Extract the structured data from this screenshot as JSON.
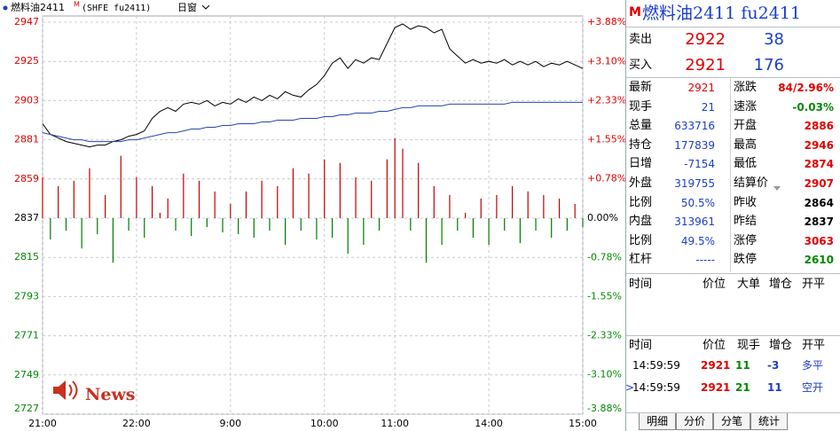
{
  "header": {
    "name": "燃料油2411",
    "flag": "M",
    "code": "(SHFE fu2411)",
    "window": "日窗"
  },
  "watermark": "News",
  "chart_data": {
    "type": "line",
    "x": [
      0,
      5,
      10,
      15,
      20,
      25,
      30,
      35,
      40,
      45,
      50,
      55,
      60,
      65,
      70,
      75,
      80,
      85,
      90,
      95,
      100,
      105,
      110,
      115,
      120,
      125,
      130,
      135,
      140,
      145,
      150,
      155,
      160,
      165,
      170,
      175,
      180,
      185,
      190,
      195,
      200,
      205,
      210,
      215,
      220,
      225,
      230,
      235,
      240,
      245,
      250,
      255,
      260,
      265,
      270,
      275,
      280,
      285,
      290,
      295,
      300,
      305,
      310,
      315,
      320,
      325,
      330,
      335,
      340,
      345
    ],
    "series": [
      {
        "color": "#000000",
        "values": [
          2890,
          2884,
          2882,
          2880,
          2879,
          2878,
          2877,
          2878,
          2878,
          2880,
          2881,
          2883,
          2884,
          2886,
          2893,
          2897,
          2899,
          2897,
          2901,
          2902,
          2901,
          2903,
          2900,
          2902,
          2901,
          2904,
          2902,
          2905,
          2903,
          2906,
          2904,
          2908,
          2906,
          2905,
          2909,
          2912,
          2917,
          2924,
          2927,
          2921,
          2926,
          2924,
          2927,
          2926,
          2935,
          2944,
          2946,
          2943,
          2945,
          2944,
          2941,
          2943,
          2932,
          2928,
          2924,
          2926,
          2924,
          2925,
          2924,
          2926,
          2923,
          2925,
          2923,
          2925,
          2922,
          2924,
          2923,
          2925,
          2923,
          2921
        ]
      },
      {
        "color": "#2946b0",
        "values": [
          2885,
          2884,
          2883,
          2882,
          2881,
          2881,
          2880,
          2880,
          2880,
          2880,
          2880,
          2881,
          2881,
          2882,
          2883,
          2884,
          2885,
          2885,
          2886,
          2887,
          2887,
          2888,
          2888,
          2889,
          2889,
          2890,
          2890,
          2890,
          2891,
          2891,
          2892,
          2892,
          2892,
          2893,
          2893,
          2893,
          2894,
          2894,
          2895,
          2895,
          2896,
          2896,
          2896,
          2897,
          2897,
          2898,
          2899,
          2899,
          2900,
          2900,
          2900,
          2900,
          2901,
          2901,
          2901,
          2901,
          2901,
          2901,
          2901,
          2901,
          2902,
          2902,
          2902,
          2902,
          2902,
          2902,
          2902,
          2902,
          2902,
          2902
        ]
      }
    ],
    "bars": {
      "up_color": "#c00000",
      "down_color": "#007a00",
      "values": [
        2860,
        2825,
        2855,
        2830,
        2858,
        2820,
        2865,
        2828,
        2850,
        2812,
        2872,
        2830,
        2860,
        2826,
        2855,
        2840,
        2848,
        2830,
        2862,
        2827,
        2858,
        2832,
        2852,
        2829,
        2845,
        2828,
        2852,
        2826,
        2858,
        2830,
        2855,
        2822,
        2865,
        2830,
        2862,
        2825,
        2870,
        2826,
        2868,
        2817,
        2860,
        2822,
        2858,
        2830,
        2870,
        2882,
        2876,
        2830,
        2868,
        2812,
        2855,
        2822,
        2850,
        2830,
        2840,
        2826,
        2848,
        2822,
        2850,
        2830,
        2855,
        2823,
        2852,
        2830,
        2850,
        2826,
        2848,
        2830,
        2845,
        2832
      ]
    },
    "xlim": [
      0,
      345
    ],
    "xticks": [
      {
        "value": 0,
        "label": "21:00"
      },
      {
        "value": 60,
        "label": "22:00"
      },
      {
        "value": 120,
        "label": "9:00"
      },
      {
        "value": 180,
        "label": "10:00"
      },
      {
        "value": 225,
        "label": "11:00"
      },
      {
        "value": 285,
        "label": "14:00"
      },
      {
        "value": 345,
        "label": "15:00"
      }
    ],
    "ylim": [
      2727,
      2947
    ],
    "yticks": [
      2947,
      2925,
      2903,
      2881,
      2859,
      2837,
      2815,
      2793,
      2771,
      2749,
      2727
    ],
    "y2lim": [
      -3.88,
      3.88
    ],
    "y2ticks": [
      {
        "value": 3.88,
        "label": "+3.88%"
      },
      {
        "value": 3.1,
        "label": "+3.10%"
      },
      {
        "value": 2.33,
        "label": "+2.33%"
      },
      {
        "value": 1.55,
        "label": "+1.55%"
      },
      {
        "value": 0.78,
        "label": "+0.78%"
      },
      {
        "value": 0.0,
        "label": "0.00%"
      },
      {
        "value": -0.78,
        "label": "-0.78%"
      },
      {
        "value": -1.55,
        "label": "-1.55%"
      },
      {
        "value": -2.33,
        "label": "-2.33%"
      },
      {
        "value": -3.1,
        "label": "-3.10%"
      },
      {
        "value": -3.88,
        "label": "-3.88%"
      }
    ],
    "grid": true
  },
  "panel": {
    "flag": "M",
    "title": "燃料油2411 fu2411",
    "ask": {
      "label": "卖出",
      "price": "2922",
      "volume": "38"
    },
    "bid": {
      "label": "买入",
      "price": "2921",
      "volume": "176"
    },
    "quote": [
      [
        "最新",
        "2921",
        "涨跌",
        "84/2.96%"
      ],
      [
        "现手",
        "21",
        "速涨",
        "-0.03%"
      ],
      [
        "总量",
        "633716",
        "开盘",
        "2886"
      ],
      [
        "持仓",
        "177839",
        "最高",
        "2946"
      ],
      [
        "日增",
        "-7154",
        "最低",
        "2874"
      ],
      [
        "外盘",
        "319755",
        "结算价",
        "2907"
      ],
      [
        "比例",
        "50.5%",
        "昨收",
        "2864"
      ],
      [
        "内盘",
        "313961",
        "昨结",
        "2837"
      ],
      [
        "比例",
        "49.5%",
        "涨停",
        "3063"
      ],
      [
        "杠杆",
        "-----",
        "跌停",
        "2610"
      ]
    ],
    "big_orders": {
      "headers": [
        "时间",
        "价位",
        "大单",
        "增仓",
        "开平"
      ]
    },
    "trades": {
      "headers": [
        "时间",
        "价位",
        "现手",
        "增仓",
        "开平"
      ],
      "marker": ">",
      "rows": [
        [
          "14:59:59",
          "2921",
          "11",
          "-3",
          "多平"
        ],
        [
          "14:59:59",
          "2921",
          "21",
          "11",
          "空开"
        ]
      ]
    },
    "tabs": [
      "明细",
      "分价",
      "分笔",
      "统计"
    ]
  }
}
